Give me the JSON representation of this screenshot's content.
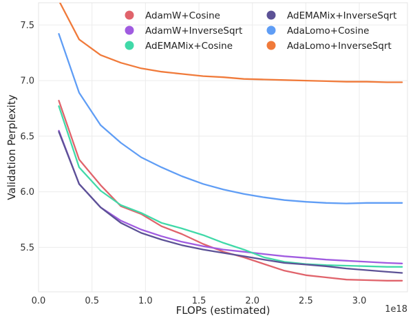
{
  "chart_data": {
    "type": "line",
    "title": "",
    "xlabel": "FLOPs (estimated)",
    "ylabel": "Validation Perplexity",
    "x_offset_label": "1e18",
    "xlim": [
      0.0,
      3.45
    ],
    "ylim": [
      5.1,
      7.7
    ],
    "xticks": [
      0.0,
      0.5,
      1.0,
      1.5,
      2.0,
      2.5,
      3.0
    ],
    "xtick_labels": [
      "0.0",
      "0.5",
      "1.0",
      "1.5",
      "2.0",
      "2.5",
      "3.0"
    ],
    "yticks": [
      5.5,
      6.0,
      6.5,
      7.0,
      7.5
    ],
    "ytick_labels": [
      "5.5",
      "6.0",
      "6.5",
      "7.0",
      "7.5"
    ],
    "grid": true,
    "legend": "top, two columns",
    "series": [
      {
        "name": "AdamW+Cosine",
        "color": "#e0636b",
        "x": [
          0.19,
          0.38,
          0.58,
          0.77,
          0.96,
          1.15,
          1.34,
          1.54,
          1.73,
          1.92,
          2.11,
          2.3,
          2.5,
          2.69,
          2.88,
          3.07,
          3.26,
          3.4
        ],
        "y": [
          6.82,
          6.29,
          6.06,
          5.87,
          5.8,
          5.69,
          5.62,
          5.53,
          5.46,
          5.41,
          5.35,
          5.29,
          5.25,
          5.23,
          5.21,
          5.205,
          5.2,
          5.2
        ]
      },
      {
        "name": "AdamW+InverseSqrt",
        "color": "#a05be0",
        "x": [
          0.19,
          0.38,
          0.58,
          0.77,
          0.96,
          1.15,
          1.34,
          1.54,
          1.73,
          1.92,
          2.11,
          2.3,
          2.5,
          2.69,
          2.88,
          3.07,
          3.26,
          3.4
        ],
        "y": [
          6.55,
          6.07,
          5.86,
          5.74,
          5.66,
          5.6,
          5.55,
          5.51,
          5.48,
          5.46,
          5.44,
          5.42,
          5.405,
          5.39,
          5.38,
          5.37,
          5.36,
          5.355
        ]
      },
      {
        "name": "AdEMAMix+Cosine",
        "color": "#40d9a8",
        "x": [
          0.19,
          0.38,
          0.58,
          0.77,
          0.96,
          1.15,
          1.34,
          1.54,
          1.73,
          1.92,
          2.11,
          2.3,
          2.5,
          2.69,
          2.88,
          3.07,
          3.26,
          3.4
        ],
        "y": [
          6.77,
          6.22,
          6.01,
          5.88,
          5.81,
          5.72,
          5.67,
          5.61,
          5.54,
          5.48,
          5.41,
          5.37,
          5.35,
          5.34,
          5.335,
          5.33,
          5.325,
          5.325
        ]
      },
      {
        "name": "AdEMAMix+InverseSqrt",
        "color": "#5c5296",
        "x": [
          0.19,
          0.38,
          0.58,
          0.77,
          0.96,
          1.15,
          1.34,
          1.54,
          1.73,
          1.92,
          2.11,
          2.3,
          2.5,
          2.69,
          2.88,
          3.07,
          3.26,
          3.4
        ],
        "y": [
          6.54,
          6.07,
          5.86,
          5.72,
          5.63,
          5.57,
          5.52,
          5.48,
          5.45,
          5.42,
          5.39,
          5.36,
          5.345,
          5.33,
          5.31,
          5.295,
          5.28,
          5.27
        ]
      },
      {
        "name": "AdaLomo+Cosine",
        "color": "#5f9df5",
        "x": [
          0.19,
          0.38,
          0.58,
          0.77,
          0.96,
          1.15,
          1.34,
          1.54,
          1.73,
          1.92,
          2.11,
          2.3,
          2.5,
          2.69,
          2.88,
          3.07,
          3.26,
          3.4
        ],
        "y": [
          7.42,
          6.89,
          6.6,
          6.44,
          6.31,
          6.22,
          6.14,
          6.07,
          6.02,
          5.98,
          5.95,
          5.925,
          5.91,
          5.9,
          5.895,
          5.9,
          5.9,
          5.9
        ]
      },
      {
        "name": "AdaLomo+InverseSqrt",
        "color": "#f07a3a",
        "x": [
          0.19,
          0.38,
          0.58,
          0.77,
          0.96,
          1.15,
          1.34,
          1.54,
          1.73,
          1.92,
          2.11,
          2.3,
          2.5,
          2.69,
          2.88,
          3.07,
          3.26,
          3.4
        ],
        "y": [
          7.72,
          7.37,
          7.23,
          7.16,
          7.11,
          7.08,
          7.06,
          7.04,
          7.03,
          7.015,
          7.01,
          7.005,
          7.0,
          6.995,
          6.99,
          6.99,
          6.985,
          6.985
        ]
      }
    ]
  }
}
